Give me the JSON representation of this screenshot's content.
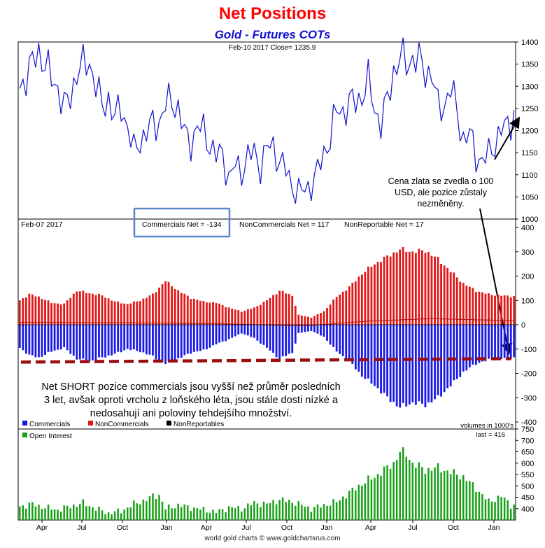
{
  "title": "Net Positions",
  "subtitle": "Gold - Futures COTs",
  "footer": "world gold charts © www.goldchartsrus.com",
  "colors": {
    "price": "#1010d0",
    "commercials": "#1a1ae6",
    "noncommercials": "#e01818",
    "nonreportable": "#000000",
    "open_interest": "#16a016",
    "average": "#9a0f0f",
    "box": "#5a86c8"
  },
  "chart_data": [
    {
      "type": "line",
      "id": "price",
      "header": "Feb-10  2017   Close= 1235.9",
      "ylim": [
        1000,
        1400
      ],
      "yticks": [
        1000,
        1050,
        1100,
        1150,
        1200,
        1250,
        1300,
        1350,
        1400
      ],
      "anchors": [
        [
          0,
          1295
        ],
        [
          2,
          1325
        ],
        [
          4,
          1350
        ],
        [
          6,
          1380
        ],
        [
          8,
          1350
        ],
        [
          10,
          1315
        ],
        [
          12,
          1300
        ],
        [
          14,
          1250
        ],
        [
          16,
          1275
        ],
        [
          18,
          1335
        ],
        [
          20,
          1345
        ],
        [
          22,
          1355
        ],
        [
          24,
          1305
        ],
        [
          26,
          1250
        ],
        [
          28,
          1275
        ],
        [
          30,
          1225
        ],
        [
          32,
          1255
        ],
        [
          34,
          1210
        ],
        [
          36,
          1150
        ],
        [
          38,
          1180
        ],
        [
          40,
          1195
        ],
        [
          42,
          1215
        ],
        [
          44,
          1220
        ],
        [
          46,
          1255
        ],
        [
          48,
          1270
        ],
        [
          50,
          1250
        ],
        [
          52,
          1190
        ],
        [
          54,
          1175
        ],
        [
          56,
          1205
        ],
        [
          58,
          1200
        ],
        [
          60,
          1170
        ],
        [
          62,
          1140
        ],
        [
          64,
          1150
        ],
        [
          66,
          1090
        ],
        [
          68,
          1120
        ],
        [
          70,
          1110
        ],
        [
          72,
          1140
        ],
        [
          74,
          1150
        ],
        [
          76,
          1120
        ],
        [
          78,
          1160
        ],
        [
          80,
          1165
        ],
        [
          82,
          1130
        ],
        [
          84,
          1110
        ],
        [
          86,
          1075
        ],
        [
          88,
          1060
        ],
        [
          90,
          1065
        ],
        [
          92,
          1080
        ],
        [
          94,
          1105
        ],
        [
          96,
          1150
        ],
        [
          98,
          1185
        ],
        [
          100,
          1245
        ],
        [
          102,
          1245
        ],
        [
          104,
          1260
        ],
        [
          106,
          1265
        ],
        [
          108,
          1280
        ],
        [
          110,
          1310
        ],
        [
          112,
          1250
        ],
        [
          114,
          1215
        ],
        [
          116,
          1265
        ],
        [
          118,
          1335
        ],
        [
          120,
          1365
        ],
        [
          122,
          1350
        ],
        [
          124,
          1365
        ],
        [
          126,
          1355
        ],
        [
          128,
          1335
        ],
        [
          130,
          1330
        ],
        [
          132,
          1250
        ],
        [
          134,
          1260
        ],
        [
          136,
          1295
        ],
        [
          138,
          1245
        ],
        [
          140,
          1180
        ],
        [
          142,
          1190
        ],
        [
          144,
          1145
        ],
        [
          146,
          1130
        ],
        [
          148,
          1145
        ],
        [
          150,
          1175
        ],
        [
          152,
          1200
        ],
        [
          154,
          1210
        ],
        [
          156,
          1240
        ]
      ],
      "annotation": "Cena zlata se zvedla o 100 USD, ale pozice zůstaly nezměněny."
    },
    {
      "type": "bar",
      "id": "cot",
      "header": "Feb-07  2017",
      "labels": {
        "commercials": "Commercials Net = -134",
        "noncommercials": "NonCommercials Net = 117",
        "nonreportable": "NonReportable Net = 17"
      },
      "ylim": [
        -400,
        400
      ],
      "yticks": [
        -400,
        -300,
        -200,
        -100,
        0,
        100,
        200,
        300,
        400
      ],
      "average_line": -145,
      "commercials_anchors": [
        [
          0,
          -95
        ],
        [
          3,
          -125
        ],
        [
          6,
          -135
        ],
        [
          10,
          -110
        ],
        [
          14,
          -95
        ],
        [
          18,
          -140
        ],
        [
          22,
          -150
        ],
        [
          26,
          -135
        ],
        [
          30,
          -120
        ],
        [
          34,
          -100
        ],
        [
          38,
          -110
        ],
        [
          42,
          -130
        ],
        [
          46,
          -160
        ],
        [
          50,
          -140
        ],
        [
          54,
          -115
        ],
        [
          58,
          -105
        ],
        [
          62,
          -80
        ],
        [
          66,
          -60
        ],
        [
          70,
          -35
        ],
        [
          74,
          -55
        ],
        [
          78,
          -95
        ],
        [
          82,
          -140
        ],
        [
          86,
          -115
        ],
        [
          88,
          -35
        ],
        [
          92,
          -25
        ],
        [
          96,
          -50
        ],
        [
          100,
          -110
        ],
        [
          104,
          -150
        ],
        [
          108,
          -210
        ],
        [
          112,
          -250
        ],
        [
          116,
          -300
        ],
        [
          120,
          -340
        ],
        [
          124,
          -320
        ],
        [
          128,
          -330
        ],
        [
          132,
          -300
        ],
        [
          136,
          -250
        ],
        [
          140,
          -195
        ],
        [
          144,
          -160
        ],
        [
          148,
          -145
        ],
        [
          152,
          -140
        ],
        [
          155,
          -134
        ]
      ],
      "noncommercials_anchors": [
        [
          0,
          100
        ],
        [
          3,
          125
        ],
        [
          6,
          115
        ],
        [
          10,
          90
        ],
        [
          14,
          85
        ],
        [
          18,
          140
        ],
        [
          22,
          130
        ],
        [
          26,
          120
        ],
        [
          30,
          95
        ],
        [
          34,
          85
        ],
        [
          38,
          100
        ],
        [
          42,
          125
        ],
        [
          46,
          180
        ],
        [
          50,
          140
        ],
        [
          54,
          110
        ],
        [
          58,
          95
        ],
        [
          62,
          90
        ],
        [
          66,
          70
        ],
        [
          70,
          55
        ],
        [
          74,
          70
        ],
        [
          78,
          100
        ],
        [
          82,
          140
        ],
        [
          86,
          120
        ],
        [
          88,
          40
        ],
        [
          92,
          30
        ],
        [
          96,
          55
        ],
        [
          100,
          115
        ],
        [
          104,
          155
        ],
        [
          108,
          210
        ],
        [
          112,
          250
        ],
        [
          116,
          280
        ],
        [
          120,
          310
        ],
        [
          124,
          300
        ],
        [
          128,
          305
        ],
        [
          132,
          270
        ],
        [
          136,
          220
        ],
        [
          140,
          170
        ],
        [
          144,
          140
        ],
        [
          148,
          125
        ],
        [
          152,
          120
        ],
        [
          155,
          117
        ]
      ],
      "nonreportable_anchors": [
        [
          0,
          10
        ],
        [
          30,
          8
        ],
        [
          60,
          5
        ],
        [
          90,
          -5
        ],
        [
          110,
          15
        ],
        [
          130,
          25
        ],
        [
          155,
          17
        ]
      ],
      "legend": [
        "Commercials",
        "NonCommercials",
        "NonReportables"
      ],
      "units": "volumes in 1000's",
      "annotation": "Net SHORT pozice commercials jsou vyšší než průměr posledních 3 let, avšak oproti vrcholu z loňského léta, jsou stále dosti nízké a nedosahují ani poloviny tehdejšího množství."
    },
    {
      "type": "bar",
      "id": "open_interest",
      "legend": [
        "Open Interest"
      ],
      "last": "last = 416",
      "ylim": [
        350,
        750
      ],
      "yticks": [
        400,
        450,
        500,
        550,
        600,
        650,
        700,
        750
      ],
      "anchors": [
        [
          0,
          410
        ],
        [
          4,
          420
        ],
        [
          8,
          405
        ],
        [
          12,
          395
        ],
        [
          16,
          410
        ],
        [
          20,
          425
        ],
        [
          24,
          400
        ],
        [
          28,
          380
        ],
        [
          32,
          390
        ],
        [
          36,
          420
        ],
        [
          40,
          440
        ],
        [
          42,
          455
        ],
        [
          44,
          460
        ],
        [
          46,
          400
        ],
        [
          50,
          415
        ],
        [
          54,
          405
        ],
        [
          58,
          395
        ],
        [
          62,
          385
        ],
        [
          66,
          405
        ],
        [
          70,
          400
        ],
        [
          74,
          425
        ],
        [
          78,
          420
        ],
        [
          82,
          440
        ],
        [
          86,
          430
        ],
        [
          90,
          410
        ],
        [
          92,
          400
        ],
        [
          96,
          415
        ],
        [
          100,
          430
        ],
        [
          104,
          470
        ],
        [
          108,
          510
        ],
        [
          112,
          540
        ],
        [
          115,
          570
        ],
        [
          118,
          600
        ],
        [
          120,
          650
        ],
        [
          122,
          640
        ],
        [
          124,
          600
        ],
        [
          128,
          570
        ],
        [
          132,
          580
        ],
        [
          136,
          560
        ],
        [
          140,
          540
        ],
        [
          144,
          490
        ],
        [
          148,
          430
        ],
        [
          152,
          455
        ],
        [
          155,
          416
        ]
      ],
      "xlabels": [
        "Apr",
        "Jul",
        "Oct",
        "Jan",
        "Apr",
        "Jul",
        "Oct",
        "Jan",
        "Apr",
        "Jul",
        "Oct",
        "Jan"
      ]
    }
  ]
}
